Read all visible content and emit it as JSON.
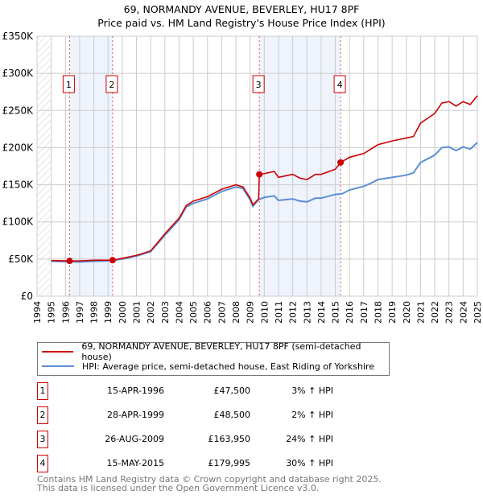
{
  "title": "69, NORMANDY AVENUE, BEVERLEY, HU17 8PF",
  "subtitle": "Price paid vs. HM Land Registry's House Price Index (HPI)",
  "colors": {
    "property": "#cc0000",
    "hpi": "#5b8fd4",
    "band": "#eef3fc"
  },
  "chart_data": {
    "type": "line",
    "title": "69, NORMANDY AVENUE, BEVERLEY, HU17 8PF",
    "xlim": [
      1994,
      2025
    ],
    "ylim": [
      0,
      350000
    ],
    "x_ticks": [
      "1994",
      "1995",
      "1996",
      "1997",
      "1998",
      "1999",
      "2000",
      "2001",
      "2002",
      "2003",
      "2004",
      "2005",
      "2006",
      "2007",
      "2008",
      "2009",
      "2010",
      "2011",
      "2012",
      "2013",
      "2014",
      "2015",
      "2016",
      "2017",
      "2018",
      "2019",
      "2020",
      "2021",
      "2022",
      "2023",
      "2024",
      "2025"
    ],
    "y_ticks": [
      {
        "v": 0,
        "l": "£0"
      },
      {
        "v": 50000,
        "l": "£50K"
      },
      {
        "v": 100000,
        "l": "£100K"
      },
      {
        "v": 150000,
        "l": "£150K"
      },
      {
        "v": 200000,
        "l": "£200K"
      },
      {
        "v": 250000,
        "l": "£250K"
      },
      {
        "v": 300000,
        "l": "£300K"
      },
      {
        "v": 350000,
        "l": "£350K"
      }
    ],
    "series": [
      {
        "name": "69, NORMANDY AVENUE, BEVERLEY, HU17 8PF (semi-detached house)",
        "color": "#cc0000",
        "x": [
          1995,
          1996.29,
          1997,
          1998,
          1999.32,
          2000,
          2001,
          2002,
          2003,
          2004,
          2004.5,
          2005,
          2006,
          2007,
          2008,
          2008.5,
          2009,
          2009.2,
          2009.6,
          2009.65,
          2010,
          2010.7,
          2011,
          2012,
          2012.5,
          2013,
          2013.6,
          2014,
          2015,
          2015.37,
          2016,
          2017,
          2017.5,
          2018,
          2019,
          2020,
          2020.5,
          2021,
          2022,
          2022.5,
          2023,
          2023.5,
          2024,
          2024.5,
          2025
        ],
        "y": [
          48000,
          47500,
          47500,
          48500,
          48500,
          51000,
          55000,
          61000,
          84000,
          105000,
          122000,
          128000,
          134000,
          144000,
          150000,
          147000,
          132000,
          123000,
          131000,
          163950,
          165000,
          168000,
          160000,
          164000,
          159000,
          157000,
          164000,
          164000,
          171000,
          179995,
          187000,
          192000,
          198000,
          204000,
          209000,
          213000,
          215000,
          233000,
          246000,
          260000,
          262000,
          256000,
          262000,
          258000,
          270000
        ]
      },
      {
        "name": "HPI: Average price, semi-detached house, East Riding of Yorkshire",
        "color": "#5b8fd4",
        "x": [
          1995,
          1996,
          1997,
          1998,
          1999,
          2000,
          2001,
          2002,
          2003,
          2004,
          2004.5,
          2005,
          2006,
          2007,
          2008,
          2008.5,
          2009,
          2009.2,
          2009.6,
          2010,
          2010.7,
          2011,
          2012,
          2012.5,
          2013,
          2013.6,
          2014,
          2015,
          2015.5,
          2016,
          2017,
          2017.5,
          2018,
          2019,
          2020,
          2020.5,
          2021,
          2022,
          2022.5,
          2023,
          2023.5,
          2024,
          2024.5,
          2025
        ],
        "y": [
          47000,
          46500,
          46000,
          47000,
          47500,
          50000,
          54000,
          60000,
          82000,
          103000,
          120000,
          125000,
          131000,
          141000,
          147000,
          145000,
          130000,
          121000,
          130000,
          133000,
          135000,
          129000,
          131000,
          128000,
          127000,
          132000,
          132000,
          137000,
          138000,
          143000,
          148000,
          152000,
          157000,
          160000,
          163000,
          166000,
          180000,
          190000,
          200000,
          201000,
          196000,
          201000,
          198000,
          207000
        ]
      }
    ],
    "sales": [
      {
        "label": "1",
        "x": 1996.29,
        "y": 47500,
        "date": "15-APR-1996",
        "price": "£47,500",
        "hpi": "3% ↑ HPI"
      },
      {
        "label": "2",
        "x": 1999.32,
        "y": 48500,
        "date": "28-APR-1999",
        "price": "£48,500",
        "hpi": "2% ↑ HPI"
      },
      {
        "label": "3",
        "x": 2009.65,
        "y": 163950,
        "date": "26-AUG-2009",
        "price": "£163,950",
        "hpi": "24% ↑ HPI"
      },
      {
        "label": "4",
        "x": 2015.37,
        "y": 179995,
        "date": "15-MAY-2015",
        "price": "£179,995",
        "hpi": "30% ↑ HPI"
      }
    ],
    "shaded_ranges": [
      [
        1996.29,
        1999.32
      ],
      [
        2009.65,
        2015.37
      ]
    ],
    "legend": "bottom"
  },
  "footer": {
    "line1": "Contains HM Land Registry data © Crown copyright and database right 2025.",
    "line2": "This data is licensed under the Open Government Licence v3.0."
  }
}
